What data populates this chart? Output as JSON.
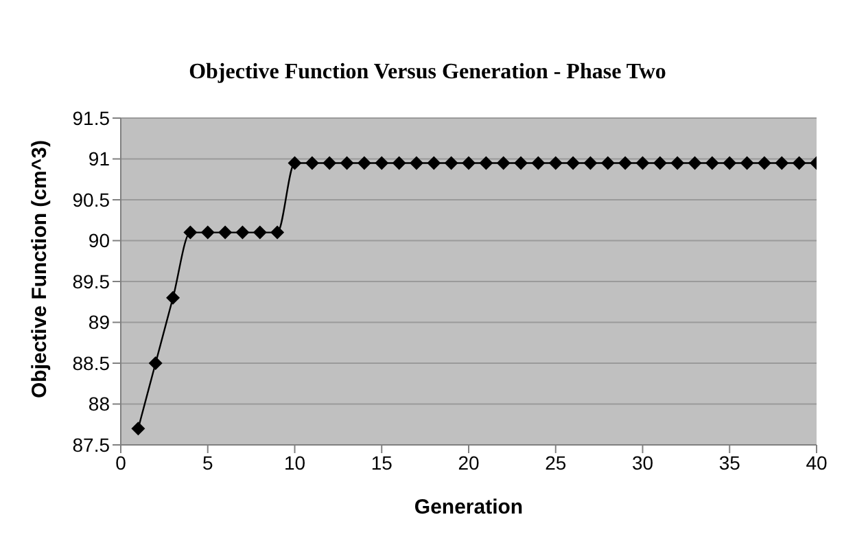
{
  "chart_data": {
    "type": "line",
    "title": "Objective Function Versus Generation - Phase Two",
    "xlabel": "Generation",
    "ylabel": "Objective Function (cm^3)",
    "x": [
      1,
      2,
      3,
      4,
      5,
      6,
      7,
      8,
      9,
      10,
      11,
      12,
      13,
      14,
      15,
      16,
      17,
      18,
      19,
      20,
      21,
      22,
      23,
      24,
      25,
      26,
      27,
      28,
      29,
      30,
      31,
      32,
      33,
      34,
      35,
      36,
      37,
      38,
      39,
      40
    ],
    "series": [
      {
        "color": "#000000",
        "values": [
          87.7,
          88.5,
          89.3,
          90.1,
          90.1,
          90.1,
          90.1,
          90.1,
          90.1,
          90.95,
          90.95,
          90.95,
          90.95,
          90.95,
          90.95,
          90.95,
          90.95,
          90.95,
          90.95,
          90.95,
          90.95,
          90.95,
          90.95,
          90.95,
          90.95,
          90.95,
          90.95,
          90.95,
          90.95,
          90.95,
          90.95,
          90.95,
          90.95,
          90.95,
          90.95,
          90.95,
          90.95,
          90.95,
          90.95,
          90.95
        ]
      }
    ],
    "xlim": [
      0,
      40
    ],
    "xticks": [
      0,
      5,
      10,
      15,
      20,
      25,
      30,
      35,
      40
    ],
    "ylim": [
      87.5,
      91.5
    ],
    "yticks": [
      87.5,
      88,
      88.5,
      89,
      89.5,
      90,
      90.5,
      91,
      91.5
    ],
    "grid": "y",
    "legend": false,
    "marker": "diamond",
    "line_style": "solid"
  }
}
